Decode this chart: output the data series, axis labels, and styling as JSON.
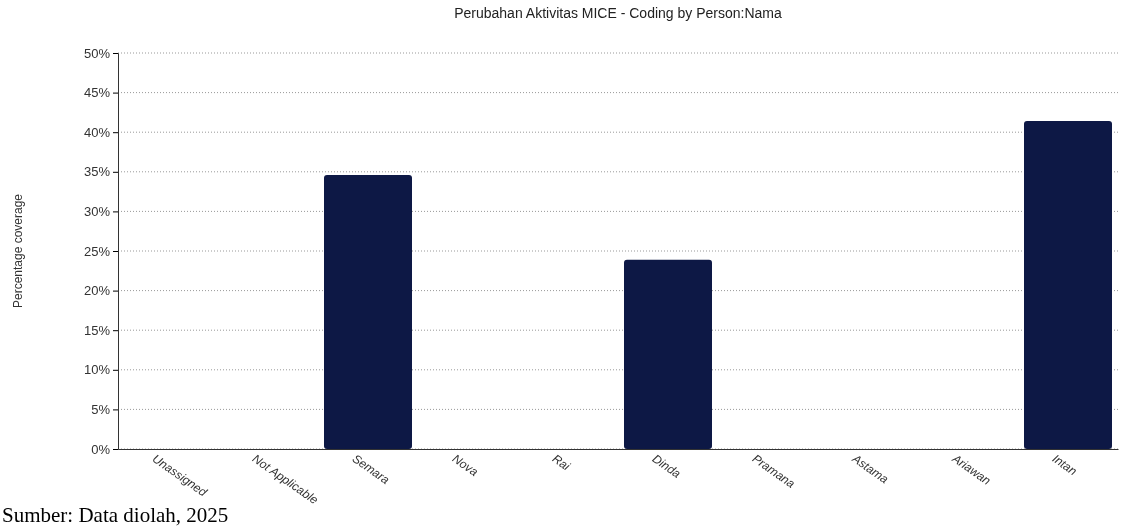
{
  "chart_data": {
    "type": "bar",
    "title": "Perubahan Aktivitas MICE - Coding by Person:Nama",
    "ylabel": "Percentage coverage",
    "categories": [
      "Unassigned",
      "Not Applicable",
      "Semara",
      "Nova",
      "Rai",
      "Dinda",
      "Pramana",
      "Astama",
      "Ariawan",
      "Intan"
    ],
    "values": [
      0,
      0,
      34.6,
      0,
      0,
      23.9,
      0,
      0,
      0,
      41.4
    ],
    "color": "#0d1845",
    "ylim": [
      0,
      50
    ],
    "yticks": [
      {
        "value": 0,
        "label": "0%"
      },
      {
        "value": 5,
        "label": "5%"
      },
      {
        "value": 10,
        "label": "10%"
      },
      {
        "value": 15,
        "label": "15%"
      },
      {
        "value": 20,
        "label": "20%"
      },
      {
        "value": 25,
        "label": "25%"
      },
      {
        "value": 30,
        "label": "30%"
      },
      {
        "value": 35,
        "label": "35%"
      },
      {
        "value": 40,
        "label": "40%"
      },
      {
        "value": 45,
        "label": "45%"
      },
      {
        "value": 50,
        "label": "50%"
      }
    ],
    "grid": "y",
    "annotations": [
      "Sumber: Data diolah, 2025"
    ]
  }
}
